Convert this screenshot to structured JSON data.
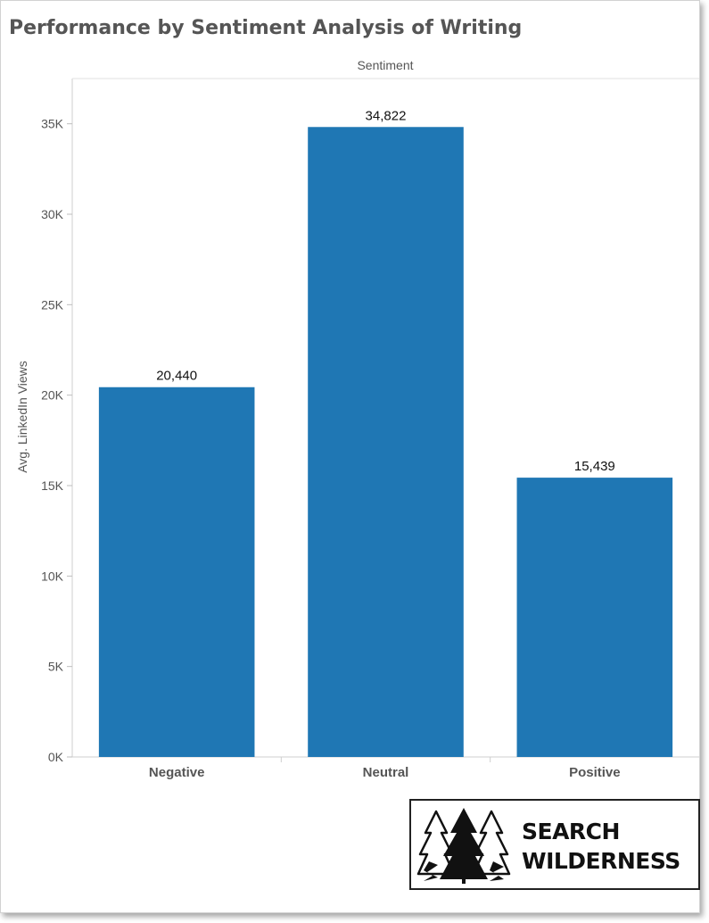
{
  "colors": {
    "bar": "#1f77b4",
    "axis_text": "#555555",
    "label_text": "#111111",
    "grid": "#e6e6e6"
  },
  "logo": {
    "line1": "SEARCH",
    "line2": "WILDERNESS",
    "icon": "pine-trees-icon"
  },
  "chart_data": {
    "type": "bar",
    "title": "Performance by Sentiment Analysis of Writing",
    "xlabel": "Sentiment",
    "ylabel": "Avg. LinkedIn Views",
    "categories": [
      "Negative",
      "Neutral",
      "Positive"
    ],
    "values": [
      20440,
      34822,
      15439
    ],
    "data_labels": [
      "20,440",
      "34,822",
      "15,439"
    ],
    "ylim": [
      0,
      37500
    ],
    "yticks": [
      0,
      5000,
      10000,
      15000,
      20000,
      25000,
      30000,
      35000
    ],
    "ytick_labels": [
      "0K",
      "5K",
      "10K",
      "15K",
      "20K",
      "25K",
      "30K",
      "35K"
    ],
    "grid": false,
    "legend": "none"
  }
}
